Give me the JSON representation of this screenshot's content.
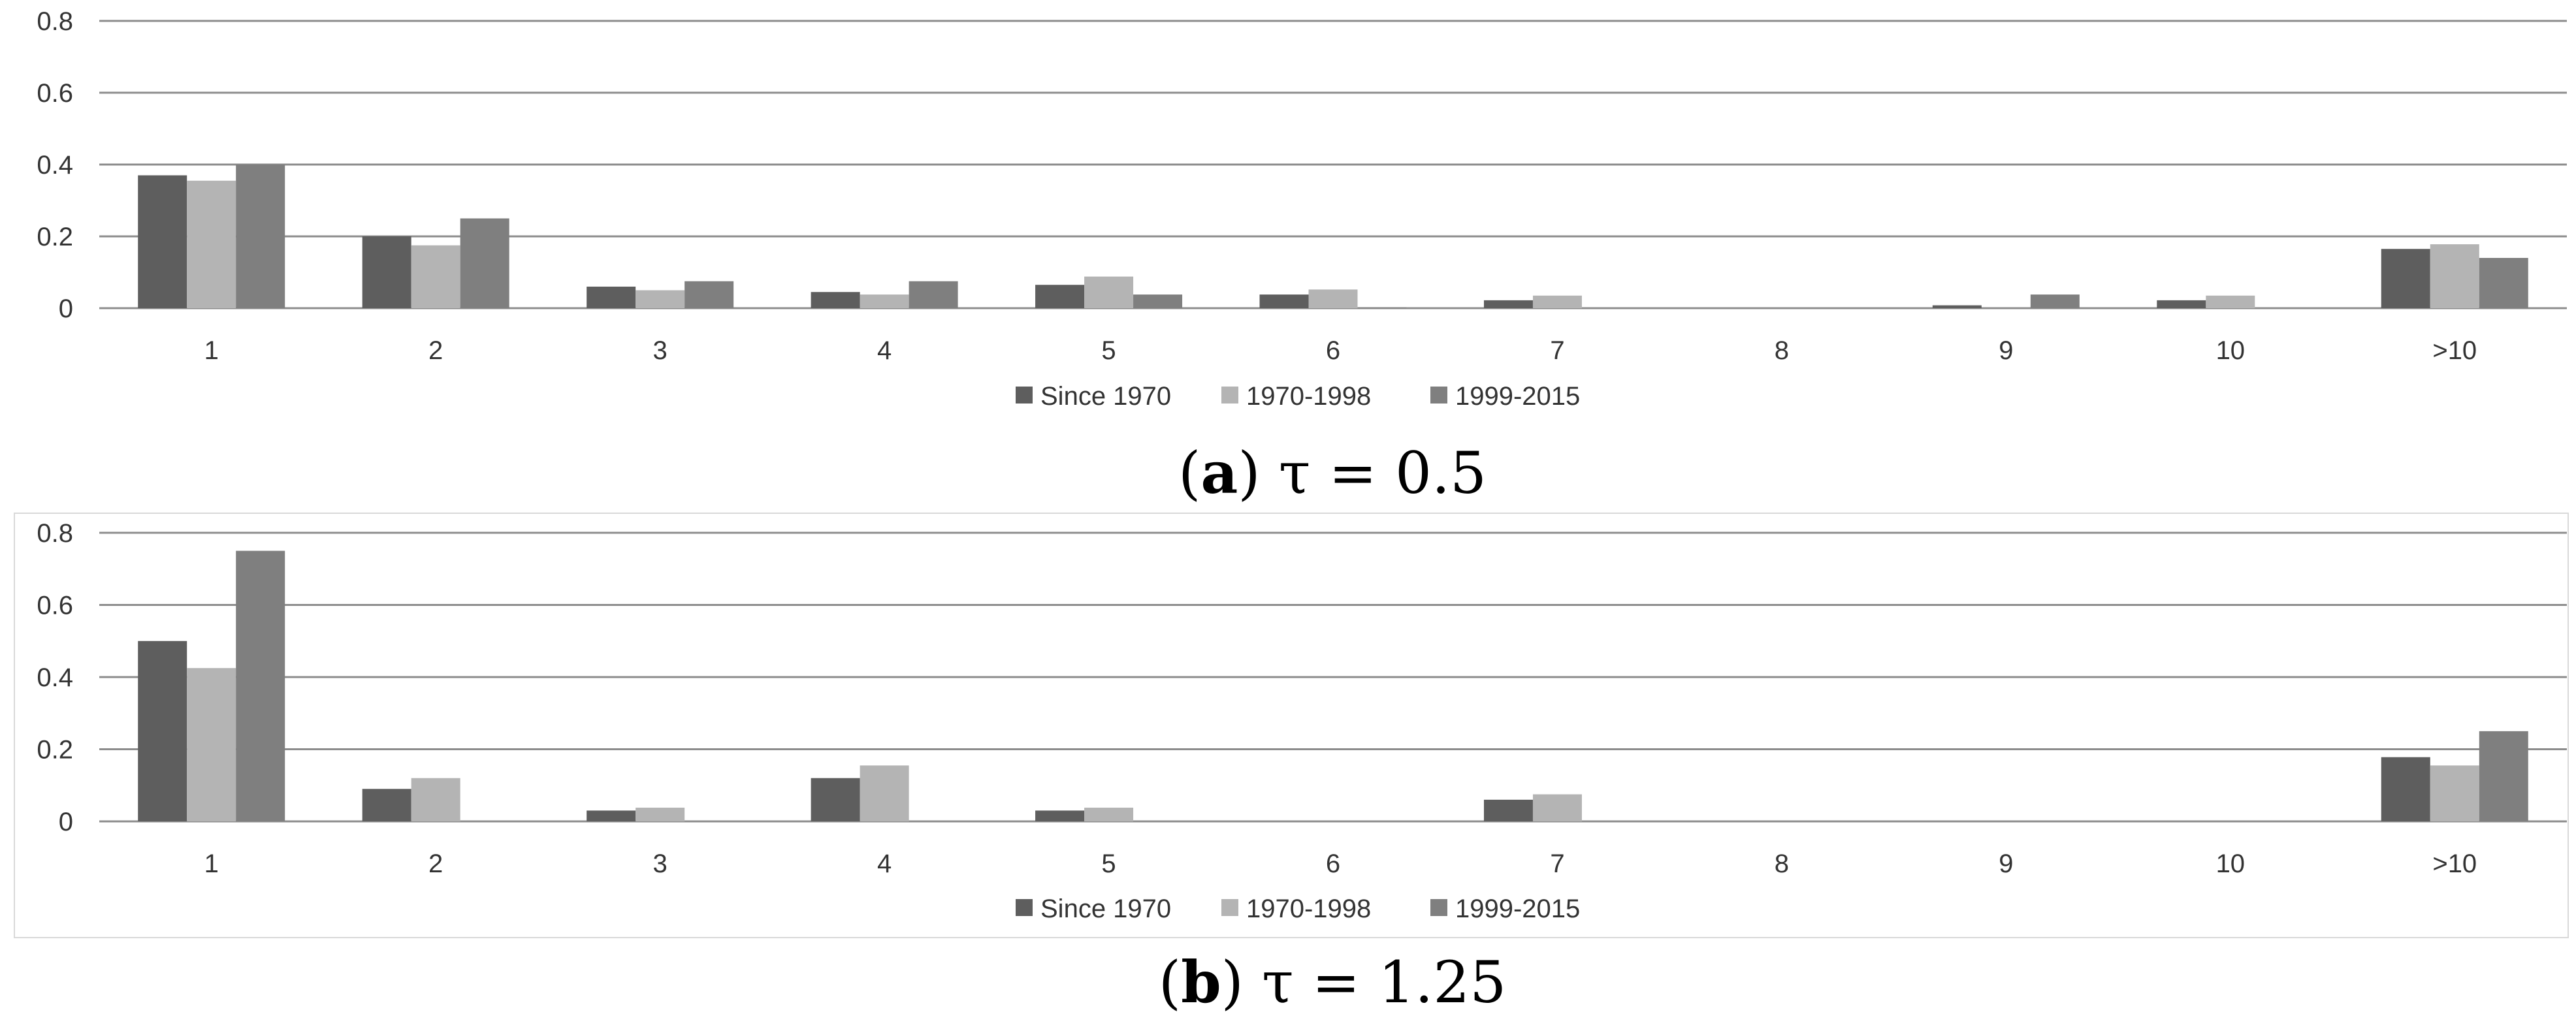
{
  "chart_data": [
    {
      "type": "bar",
      "categories": [
        "1",
        "2",
        "3",
        "4",
        "5",
        "6",
        "7",
        "8",
        "9",
        "10",
        ">10"
      ],
      "series": [
        {
          "name": "Since 1970",
          "color": "#5e5e5e",
          "values": [
            0.37,
            0.2,
            0.06,
            0.045,
            0.065,
            0.038,
            0.022,
            0,
            0.008,
            0.022,
            0.165
          ]
        },
        {
          "name": "1970-1998",
          "color": "#b4b4b4",
          "values": [
            0.355,
            0.175,
            0.05,
            0.038,
            0.088,
            0.052,
            0.035,
            0,
            0,
            0.035,
            0.178
          ]
        },
        {
          "name": "1999-2015",
          "color": "#7f7f7f",
          "values": [
            0.4,
            0.25,
            0.075,
            0.075,
            0.038,
            0.002,
            0,
            0,
            0.038,
            0,
            0.14
          ]
        }
      ],
      "ylim": [
        0,
        0.8
      ],
      "yticks": [
        "0",
        "0.2",
        "0.4",
        "0.6",
        "0.8"
      ],
      "grid": true,
      "legend": "bottom",
      "caption": {
        "label": "a",
        "text": "τ = 0.5"
      }
    },
    {
      "type": "bar",
      "categories": [
        "1",
        "2",
        "3",
        "4",
        "5",
        "6",
        "7",
        "8",
        "9",
        "10",
        ">10"
      ],
      "series": [
        {
          "name": "Since 1970",
          "color": "#5e5e5e",
          "values": [
            0.5,
            0.09,
            0.03,
            0.12,
            0.03,
            0,
            0.06,
            0,
            0,
            0,
            0.178
          ]
        },
        {
          "name": "1970-1998",
          "color": "#b4b4b4",
          "values": [
            0.425,
            0.12,
            0.038,
            0.155,
            0.038,
            0,
            0.075,
            0,
            0,
            0,
            0.155
          ]
        },
        {
          "name": "1999-2015",
          "color": "#7f7f7f",
          "values": [
            0.75,
            0,
            0,
            0,
            0,
            0,
            0,
            0,
            0,
            0,
            0.25
          ]
        }
      ],
      "ylim": [
        0,
        0.8
      ],
      "yticks": [
        "0",
        "0.2",
        "0.4",
        "0.6",
        "0.8"
      ],
      "grid": true,
      "legend": "bottom",
      "caption": {
        "label": "b",
        "text": "τ = 1.25"
      }
    }
  ]
}
